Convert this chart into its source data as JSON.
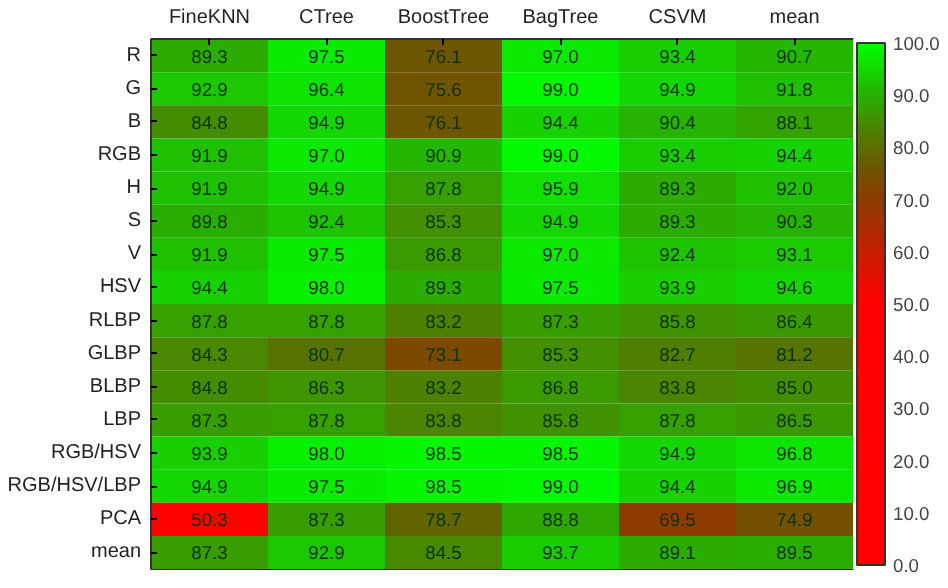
{
  "chart_data": {
    "type": "heatmap",
    "categories": [
      "FineKNN",
      "CTree",
      "BoostTree",
      "BagTree",
      "CSVM",
      "mean"
    ],
    "y_categories": [
      "R",
      "G",
      "B",
      "RGB",
      "H",
      "S",
      "V",
      "HSV",
      "RLBP",
      "GLBP",
      "BLBP",
      "LBP",
      "RGB/HSV",
      "RGB/HSV/LBP",
      "PCA",
      "mean"
    ],
    "cells": [
      [
        89.3,
        97.5,
        76.1,
        97.0,
        93.4,
        90.7
      ],
      [
        92.9,
        96.4,
        75.6,
        99.0,
        94.9,
        91.8
      ],
      [
        84.8,
        94.9,
        76.1,
        94.4,
        90.4,
        88.1
      ],
      [
        91.9,
        97.0,
        90.9,
        99.0,
        93.4,
        94.4
      ],
      [
        91.9,
        94.9,
        87.8,
        95.9,
        89.3,
        92.0
      ],
      [
        89.8,
        92.4,
        85.3,
        94.9,
        89.3,
        90.3
      ],
      [
        91.9,
        97.5,
        86.8,
        97.0,
        92.4,
        93.1
      ],
      [
        94.4,
        98.0,
        89.3,
        97.5,
        93.9,
        94.6
      ],
      [
        87.8,
        87.8,
        83.2,
        87.3,
        85.8,
        86.4
      ],
      [
        84.3,
        80.7,
        73.1,
        85.3,
        82.7,
        81.2
      ],
      [
        84.8,
        86.3,
        83.2,
        86.8,
        83.8,
        85.0
      ],
      [
        87.3,
        87.8,
        83.8,
        85.8,
        87.8,
        86.5
      ],
      [
        93.9,
        98.0,
        98.5,
        98.5,
        94.9,
        96.8
      ],
      [
        94.9,
        97.5,
        98.5,
        99.0,
        94.4,
        96.9
      ],
      [
        50.3,
        87.3,
        78.7,
        88.8,
        69.5,
        74.9
      ],
      [
        87.3,
        92.9,
        84.5,
        93.7,
        89.1,
        89.5
      ]
    ],
    "cell_labels": [
      [
        "89.3",
        "97.5",
        "76.1",
        "97.0",
        "93.4",
        "90.7"
      ],
      [
        "92.9",
        "96.4",
        "75.6",
        "99.0",
        "94.9",
        "91.8"
      ],
      [
        "84.8",
        "94.9",
        "76.1",
        "94.4",
        "90.4",
        "88.1"
      ],
      [
        "91.9",
        "97.0",
        "90.9",
        "99.0",
        "93.4",
        "94.4"
      ],
      [
        "91.9",
        "94.9",
        "87.8",
        "95.9",
        "89.3",
        "92.0"
      ],
      [
        "89.8",
        "92.4",
        "85.3",
        "94.9",
        "89.3",
        "90.3"
      ],
      [
        "91.9",
        "97.5",
        "86.8",
        "97.0",
        "92.4",
        "93.1"
      ],
      [
        "94.4",
        "98.0",
        "89.3",
        "97.5",
        "93.9",
        "94.6"
      ],
      [
        "87.8",
        "87.8",
        "83.2",
        "87.3",
        "85.8",
        "86.4"
      ],
      [
        "84.3",
        "80.7",
        "73.1",
        "85.3",
        "82.7",
        "81.2"
      ],
      [
        "84.8",
        "86.3",
        "83.2",
        "86.8",
        "83.8",
        "85.0"
      ],
      [
        "87.3",
        "87.8",
        "83.8",
        "85.8",
        "87.8",
        "86.5"
      ],
      [
        "93.9",
        "98.0",
        "98.5",
        "98.5",
        "94.9",
        "96.8"
      ],
      [
        "94.9",
        "97.5",
        "98.5",
        "99.0",
        "94.4",
        "96.9"
      ],
      [
        "50.3",
        "87.3",
        "78.7",
        "88.8",
        "69.5",
        "74.9"
      ],
      [
        "87.3",
        "92.9",
        "84.5",
        "93.7",
        "89.1",
        "89.5"
      ]
    ],
    "clim": [
      0,
      100
    ],
    "cticks": [
      {
        "value": 0,
        "label": "0.0"
      },
      {
        "value": 10,
        "label": "10.0"
      },
      {
        "value": 20,
        "label": "20.0"
      },
      {
        "value": 30,
        "label": "30.0"
      },
      {
        "value": 40,
        "label": "40.0"
      },
      {
        "value": 50,
        "label": "50.0"
      },
      {
        "value": 60,
        "label": "60.0"
      },
      {
        "value": 70,
        "label": "70.0"
      },
      {
        "value": 80,
        "label": "80.0"
      },
      {
        "value": 90,
        "label": "90.0"
      },
      {
        "value": 100,
        "label": "100.0"
      }
    ]
  }
}
